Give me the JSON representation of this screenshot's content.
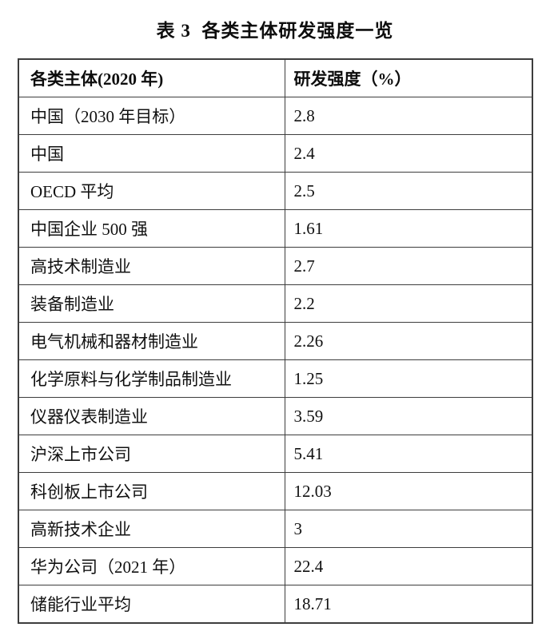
{
  "title": "表 3  各类主体研发强度一览",
  "table": {
    "columns": [
      {
        "label": "各类主体(2020 年)"
      },
      {
        "label": "研发强度（%）"
      }
    ],
    "rows": [
      {
        "entity": "中国（2030 年目标）",
        "value": "2.8"
      },
      {
        "entity": "中国",
        "value": "2.4"
      },
      {
        "entity": "OECD 平均",
        "value": "2.5"
      },
      {
        "entity": "中国企业 500 强",
        "value": "1.61"
      },
      {
        "entity": "高技术制造业",
        "value": "2.7"
      },
      {
        "entity": "装备制造业",
        "value": "2.2"
      },
      {
        "entity": "电气机械和器材制造业",
        "value": "2.26"
      },
      {
        "entity": "化学原料与化学制品制造业",
        "value": "1.25"
      },
      {
        "entity": "仪器仪表制造业",
        "value": "3.59"
      },
      {
        "entity": "沪深上市公司",
        "value": "5.41"
      },
      {
        "entity": "科创板上市公司",
        "value": "12.03"
      },
      {
        "entity": "高新技术企业",
        "value": "3"
      },
      {
        "entity": "华为公司（2021 年）",
        "value": "22.4"
      },
      {
        "entity": "储能行业平均",
        "value": "18.71"
      }
    ]
  },
  "border_color": "#3d3d3d",
  "text_color": "#111111"
}
